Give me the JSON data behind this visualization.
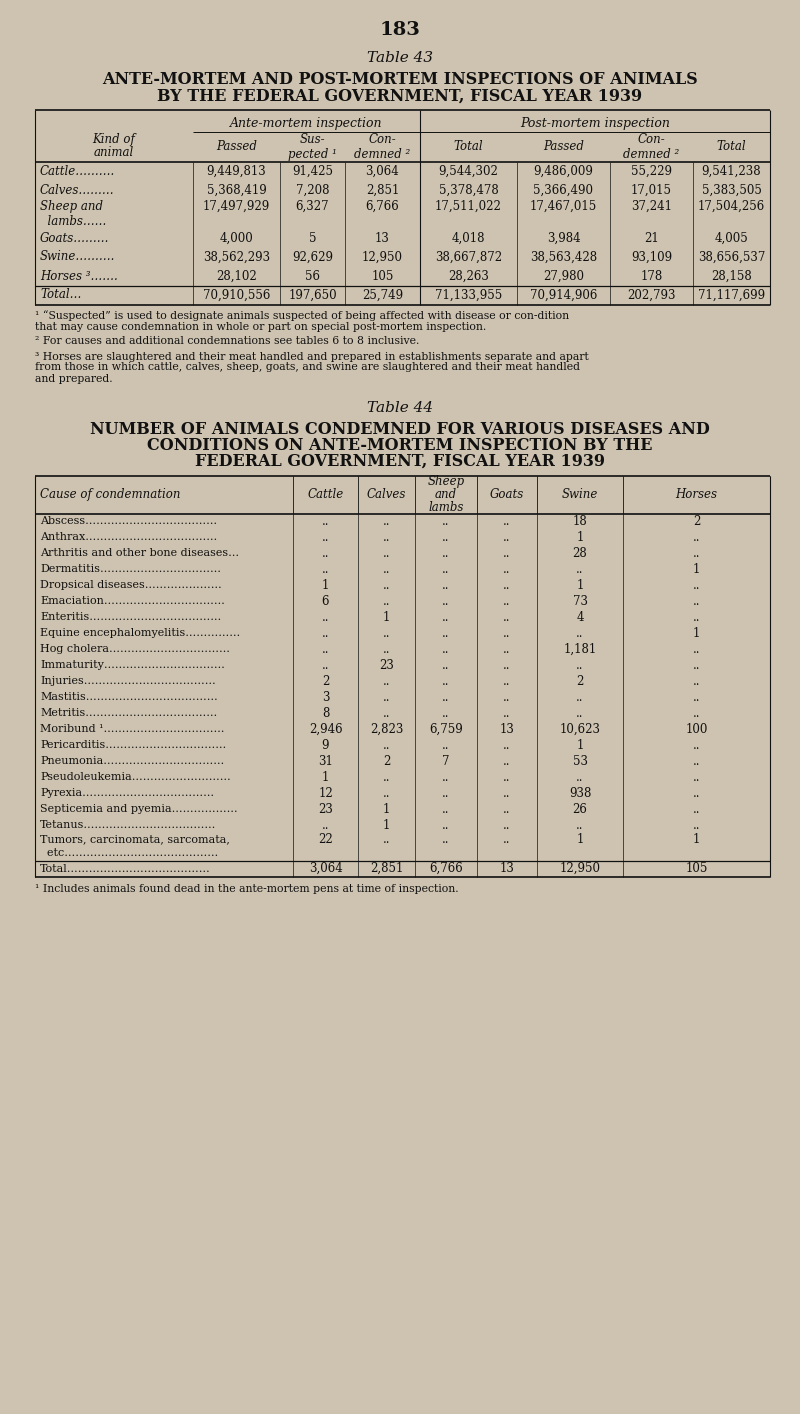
{
  "bg_color": "#cec3b0",
  "text_color": "#111111",
  "page_number": "183",
  "table43": {
    "label": "Table 43",
    "title1": "ANTE-MORTEM AND POST-MORTEM INSPECTIONS OF ANIMALS",
    "title2": "BY THE FEDERAL GOVERNMENT, FISCAL YEAR 1939",
    "ante_header": "Ante-mortem inspection",
    "post_header": "Post-mortem inspection",
    "sub_headers": [
      "Kind of\nanimal",
      "Passed",
      "Sus-\npected ¹",
      "Con-\ndemned ²",
      "Total",
      "Passed",
      "Con-\ndemned ²",
      "Total"
    ],
    "rows": [
      [
        "Cattle……….",
        "9,449,813",
        "91,425",
        "3,064",
        "9,544,302",
        "9,486,009",
        "55,229",
        "9,541,238"
      ],
      [
        "Calves………",
        "5,368,419",
        "7,208",
        "2,851",
        "5,378,478",
        "5,366,490",
        "17,015",
        "5,383,505"
      ],
      [
        "Sheep and",
        "17,497,929",
        "6,327",
        "6,766",
        "17,511,022",
        "17,467,015",
        "37,241",
        "17,504,256"
      ],
      [
        "  lambs……",
        "",
        "",
        "",
        "",
        "",
        "",
        ""
      ],
      [
        "Goats………",
        "4,000",
        "5",
        "13",
        "4,018",
        "3,984",
        "21",
        "4,005"
      ],
      [
        "Swine……….",
        "38,562,293",
        "92,629",
        "12,950",
        "38,667,872",
        "38,563,428",
        "93,109",
        "38,656,537"
      ],
      [
        "Horses ³…….",
        "28,102",
        "56",
        "105",
        "28,263",
        "27,980",
        "178",
        "28,158"
      ],
      [
        "Total…",
        "70,910,556",
        "197,650",
        "25,749",
        "71,133,955",
        "70,914,906",
        "202,793",
        "71,117,699"
      ]
    ],
    "footnotes": [
      "¹ “Suspected” is used to designate animals suspected of being affected with disease or con-dition that may cause condemnation in whole or part on special post-mortem inspection.",
      "² For causes and additional condemnations see tables 6 to 8 inclusive.",
      "³ Horses are slaughtered and their meat handled and prepared in establishments separate and apart from those in which cattle, calves, sheep, goats, and swine are slaughtered and their meat handled and prepared."
    ]
  },
  "table44": {
    "label": "Table 44",
    "title1": "NUMBER OF ANIMALS CONDEMNED FOR VARIOUS DISEASES AND",
    "title2": "CONDITIONS ON ANTE-MORTEM INSPECTION BY THE",
    "title3": "FEDERAL GOVERNMENT, FISCAL YEAR 1939",
    "headers": [
      "Cause of condemnation",
      "Cattle",
      "Calves",
      "Sheep\nand\nlambs",
      "Goats",
      "Swine",
      "Horses"
    ],
    "rows": [
      [
        "Abscess………………………………",
        "..",
        "..",
        "..",
        "..",
        "18",
        "2"
      ],
      [
        "Anthrax………………………………",
        "..",
        "..",
        "..",
        "..",
        "1",
        ".."
      ],
      [
        "Arthritis and other bone diseases…",
        "..",
        "..",
        "..",
        "..",
        "28",
        ".."
      ],
      [
        "Dermatitis……………………………",
        "..",
        "..",
        "..",
        "..",
        "..",
        "1"
      ],
      [
        "Dropsical diseases…………………",
        "1",
        "..",
        "..",
        "..",
        "1",
        ".."
      ],
      [
        "Emaciation……………………………",
        "6",
        "..",
        "..",
        "..",
        "73",
        ".."
      ],
      [
        "Enteritis………………………………",
        "..",
        "1",
        "..",
        "..",
        "4",
        ".."
      ],
      [
        "Equine encephalomyelitis……………",
        "..",
        "..",
        "..",
        "..",
        "..",
        "1"
      ],
      [
        "Hog cholera……………………………",
        "..",
        "..",
        "..",
        "..",
        "1,181",
        ".."
      ],
      [
        "Immaturity……………………………",
        "..",
        "23",
        "..",
        "..",
        "..",
        ".."
      ],
      [
        "Injuries………………………………",
        "2",
        "..",
        "..",
        "..",
        "2",
        ".."
      ],
      [
        "Mastitis………………………………",
        "3",
        "..",
        "..",
        "..",
        "..",
        ".."
      ],
      [
        "Metritis………………………………",
        "8",
        "..",
        "..",
        "..",
        "..",
        ".."
      ],
      [
        "Moribund ¹……………………………",
        "2,946",
        "2,823",
        "6,759",
        "13",
        "10,623",
        "100"
      ],
      [
        "Pericarditis……………………………",
        "9",
        "..",
        "..",
        "..",
        "1",
        ".."
      ],
      [
        "Pneumonia……………………………",
        "31",
        "2",
        "7",
        "..",
        "53",
        ".."
      ],
      [
        "Pseudoleukemia………………………",
        "1",
        "..",
        "..",
        "..",
        "..",
        ".."
      ],
      [
        "Pyrexia………………………………",
        "12",
        "..",
        "..",
        "..",
        "938",
        ".."
      ],
      [
        "Septicemia and pyemia………………",
        "23",
        "1",
        "..",
        "..",
        "26",
        ".."
      ],
      [
        "Tetanus………………………………",
        "..",
        "1",
        "..",
        "..",
        "..",
        ".."
      ],
      [
        "Tumors, carcinomata, sarcomata,",
        "22",
        "..",
        "..",
        "..",
        "1",
        "1"
      ],
      [
        "  etc……………………………………",
        "",
        "",
        "",
        "",
        "",
        ""
      ],
      [
        "Total…………………………………",
        "3,064",
        "2,851",
        "6,766",
        "13",
        "12,950",
        "105"
      ]
    ],
    "footnote": "¹ Includes animals found dead in the ante-mortem pens at time of inspection."
  }
}
